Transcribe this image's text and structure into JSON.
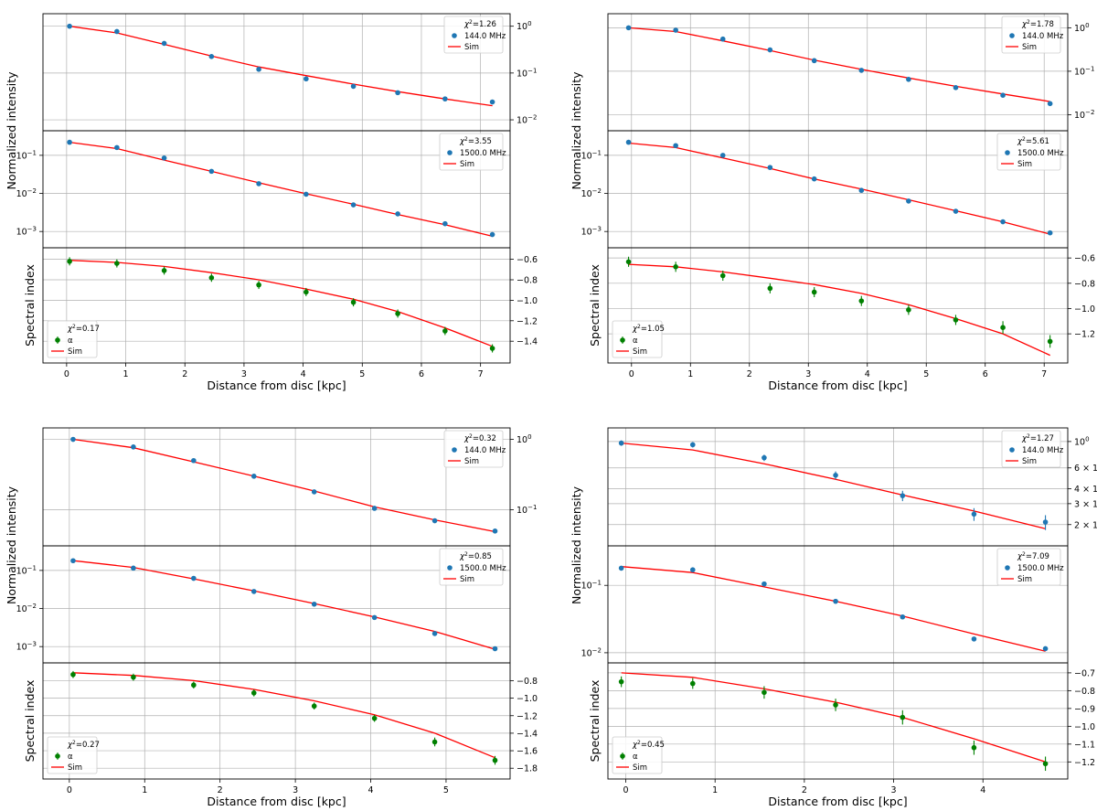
{
  "chart_data": [
    {
      "type": "scatter",
      "position": "top-left",
      "xlabel": "Distance from disc [kpc]",
      "xlim": [
        -0.4,
        7.5
      ],
      "xticks": [
        0,
        1,
        2,
        3,
        4,
        5,
        6,
        7
      ],
      "panels": [
        {
          "role": "intensity_low",
          "ylabel": "Normalized intensity",
          "yscale": "log",
          "ylim": [
            0.008,
            1.35
          ],
          "yaxis_side": "right",
          "yticks": [
            {
              "v": 1,
              "label": "10^0"
            },
            {
              "v": 0.1,
              "label": "10^-1"
            },
            {
              "v": 0.01,
              "label": "10^-2"
            }
          ],
          "legend": {
            "chi2": "1.26",
            "data_label": "144.0 MHz",
            "model_label": "Sim",
            "placement": "top-right"
          },
          "x": [
            0.05,
            0.85,
            1.65,
            2.45,
            3.25,
            4.05,
            4.85,
            5.6,
            6.4,
            7.2
          ],
          "y": [
            1.0,
            0.77,
            0.43,
            0.225,
            0.12,
            0.075,
            0.052,
            0.038,
            0.028,
            0.024
          ],
          "yerr": [
            0,
            0,
            0,
            0,
            0,
            0,
            0,
            0,
            0,
            0
          ],
          "model": [
            1.0,
            0.72,
            0.41,
            0.23,
            0.135,
            0.088,
            0.058,
            0.04,
            0.028,
            0.02
          ],
          "color": "#1f77b4"
        },
        {
          "role": "intensity_high",
          "ylabel": "",
          "yscale": "log",
          "ylim": [
            0.00055,
            0.3
          ],
          "yaxis_side": "left",
          "yticks": [
            {
              "v": 0.1,
              "label": "10^-1"
            },
            {
              "v": 0.01,
              "label": "10^-2"
            },
            {
              "v": 0.001,
              "label": "10^-3"
            }
          ],
          "legend": {
            "chi2": "3.55",
            "data_label": "1500.0 MHz",
            "model_label": "Sim",
            "placement": "top-right"
          },
          "x": [
            0.05,
            0.85,
            1.65,
            2.45,
            3.25,
            4.05,
            4.85,
            5.6,
            6.4,
            7.2
          ],
          "y": [
            0.22,
            0.16,
            0.085,
            0.038,
            0.018,
            0.0095,
            0.005,
            0.0029,
            0.0016,
            0.00083
          ],
          "yerr": [
            0,
            0,
            0,
            0,
            0,
            0,
            0,
            0,
            0,
            0
          ],
          "model": [
            0.22,
            0.15,
            0.075,
            0.038,
            0.019,
            0.0098,
            0.0052,
            0.0028,
            0.0015,
            0.00075
          ],
          "color": "#1f77b4"
        },
        {
          "role": "spectral_index",
          "ylabel": "Spectral index",
          "yscale": "linear",
          "ylim": [
            -1.55,
            -0.55
          ],
          "yaxis_side": "right",
          "yticks": [
            {
              "v": -0.6,
              "label": "−0.6"
            },
            {
              "v": -0.8,
              "label": "−0.8"
            },
            {
              "v": -1.0,
              "label": "−1.0"
            },
            {
              "v": -1.2,
              "label": "−1.2"
            },
            {
              "v": -1.4,
              "label": "−1.4"
            }
          ],
          "legend": {
            "chi2": "0.17",
            "data_label": "α",
            "model_label": "Sim",
            "placement": "lower-left"
          },
          "x": [
            0.05,
            0.85,
            1.65,
            2.45,
            3.25,
            4.05,
            4.85,
            5.6,
            6.4,
            7.2
          ],
          "y": [
            -0.62,
            -0.64,
            -0.71,
            -0.78,
            -0.85,
            -0.92,
            -1.02,
            -1.13,
            -1.3,
            -1.47
          ],
          "yerr": [
            0.04,
            0.04,
            0.04,
            0.04,
            0.04,
            0.04,
            0.04,
            0.04,
            0.04,
            0.04
          ],
          "model": [
            -0.61,
            -0.63,
            -0.67,
            -0.73,
            -0.8,
            -0.89,
            -0.99,
            -1.11,
            -1.27,
            -1.45
          ],
          "color": "#008000"
        }
      ]
    },
    {
      "type": "scatter",
      "position": "top-right",
      "xlabel": "Distance from disc [kpc]",
      "xlim": [
        -0.4,
        7.4
      ],
      "xticks": [
        0,
        1,
        2,
        3,
        4,
        5,
        6,
        7
      ],
      "panels": [
        {
          "role": "intensity_low",
          "ylabel": "Normalized intensity",
          "yscale": "log",
          "ylim": [
            0.006,
            1.5
          ],
          "yaxis_side": "right",
          "yticks": [
            {
              "v": 1,
              "label": "10^0"
            },
            {
              "v": 0.1,
              "label": "10^-1"
            },
            {
              "v": 0.01,
              "label": "10^-2"
            }
          ],
          "legend": {
            "chi2": "1.78",
            "data_label": "144.0 MHz",
            "model_label": "Sim",
            "placement": "top-right"
          },
          "x": [
            -0.05,
            0.75,
            1.55,
            2.35,
            3.1,
            3.9,
            4.7,
            5.5,
            6.3,
            7.1
          ],
          "y": [
            1.0,
            0.88,
            0.55,
            0.31,
            0.175,
            0.105,
            0.065,
            0.042,
            0.028,
            0.018
          ],
          "yerr": [
            0,
            0,
            0,
            0,
            0,
            0,
            0,
            0,
            0,
            0
          ],
          "model": [
            1.0,
            0.82,
            0.5,
            0.3,
            0.18,
            0.11,
            0.07,
            0.045,
            0.03,
            0.02
          ],
          "color": "#1f77b4"
        },
        {
          "role": "intensity_high",
          "ylabel": "",
          "yscale": "log",
          "ylim": [
            0.00055,
            0.3
          ],
          "yaxis_side": "left",
          "yticks": [
            {
              "v": 0.1,
              "label": "10^-1"
            },
            {
              "v": 0.01,
              "label": "10^-2"
            },
            {
              "v": 0.001,
              "label": "10^-3"
            }
          ],
          "legend": {
            "chi2": "5.61",
            "data_label": "1500.0 MHz",
            "model_label": "Sim",
            "placement": "top-right"
          },
          "x": [
            -0.05,
            0.75,
            1.55,
            2.35,
            3.1,
            3.9,
            4.7,
            5.5,
            6.3,
            7.1
          ],
          "y": [
            0.22,
            0.18,
            0.1,
            0.048,
            0.024,
            0.012,
            0.0063,
            0.0034,
            0.0018,
            0.00092
          ],
          "yerr": [
            0,
            0,
            0,
            0,
            0,
            0,
            0,
            0,
            0,
            0
          ],
          "model": [
            0.21,
            0.16,
            0.085,
            0.045,
            0.024,
            0.013,
            0.0068,
            0.0035,
            0.0018,
            0.00085
          ],
          "color": "#1f77b4"
        },
        {
          "role": "spectral_index",
          "ylabel": "Spectral index",
          "yscale": "linear",
          "ylim": [
            -1.38,
            -0.57
          ],
          "yaxis_side": "right",
          "yticks": [
            {
              "v": -0.6,
              "label": "−0.6"
            },
            {
              "v": -0.8,
              "label": "−0.8"
            },
            {
              "v": -1.0,
              "label": "−1.0"
            },
            {
              "v": -1.2,
              "label": "−1.2"
            }
          ],
          "legend": {
            "chi2": "1.05",
            "data_label": "α",
            "model_label": "Sim",
            "placement": "lower-left"
          },
          "x": [
            -0.05,
            0.75,
            1.55,
            2.35,
            3.1,
            3.9,
            4.7,
            5.5,
            6.3,
            7.1
          ],
          "y": [
            -0.63,
            -0.67,
            -0.74,
            -0.84,
            -0.87,
            -0.94,
            -1.01,
            -1.09,
            -1.15,
            -1.26
          ],
          "yerr": [
            0.04,
            0.04,
            0.04,
            0.04,
            0.04,
            0.04,
            0.04,
            0.04,
            0.05,
            0.05
          ],
          "model": [
            -0.65,
            -0.67,
            -0.71,
            -0.76,
            -0.81,
            -0.88,
            -0.97,
            -1.08,
            -1.2,
            -1.37
          ],
          "color": "#008000"
        }
      ]
    },
    {
      "type": "scatter",
      "position": "bottom-left",
      "xlabel": "Distance from disc [kpc]",
      "xlim": [
        -0.35,
        5.85
      ],
      "xticks": [
        0,
        1,
        2,
        3,
        4,
        5
      ],
      "panels": [
        {
          "role": "intensity_low",
          "ylabel": "Normalized intensity",
          "yscale": "log",
          "ylim": [
            0.038,
            1.18
          ],
          "yaxis_side": "right",
          "yticks": [
            {
              "v": 1,
              "label": "10^0"
            },
            {
              "v": 0.1,
              "label": "10^-1"
            }
          ],
          "legend": {
            "chi2": "0.32",
            "data_label": "144.0 MHz",
            "model_label": "Sim",
            "placement": "top-right"
          },
          "x": [
            0.05,
            0.85,
            1.65,
            2.45,
            3.25,
            4.05,
            4.85,
            5.65
          ],
          "y": [
            1.0,
            0.78,
            0.5,
            0.3,
            0.18,
            0.105,
            0.07,
            0.05
          ],
          "yerr": [
            0,
            0,
            0,
            0,
            0,
            0,
            0,
            0
          ],
          "model": [
            1.0,
            0.76,
            0.48,
            0.3,
            0.185,
            0.11,
            0.072,
            0.049
          ],
          "color": "#1f77b4"
        },
        {
          "role": "intensity_high",
          "ylabel": "",
          "yscale": "log",
          "ylim": [
            0.00055,
            0.3
          ],
          "yaxis_side": "left",
          "yticks": [
            {
              "v": 0.1,
              "label": "10^-1"
            },
            {
              "v": 0.01,
              "label": "10^-2"
            },
            {
              "v": 0.001,
              "label": "10^-3"
            }
          ],
          "legend": {
            "chi2": "0.85",
            "data_label": "1500.0 MHz",
            "model_label": "Sim",
            "placement": "top-right"
          },
          "x": [
            0.05,
            0.85,
            1.65,
            2.45,
            3.25,
            4.05,
            4.85,
            5.65
          ],
          "y": [
            0.18,
            0.115,
            0.062,
            0.028,
            0.013,
            0.0058,
            0.0022,
            0.00088
          ],
          "yerr": [
            0,
            0,
            0,
            0,
            0,
            0,
            0,
            0
          ],
          "model": [
            0.18,
            0.12,
            0.06,
            0.029,
            0.0135,
            0.006,
            0.0025,
            0.00085
          ],
          "color": "#1f77b4"
        },
        {
          "role": "spectral_index",
          "ylabel": "Spectral index",
          "yscale": "linear",
          "ylim": [
            -1.85,
            -0.67
          ],
          "yaxis_side": "right",
          "yticks": [
            {
              "v": -0.8,
              "label": "−0.8"
            },
            {
              "v": -1.0,
              "label": "−1.0"
            },
            {
              "v": -1.2,
              "label": "−1.2"
            },
            {
              "v": -1.4,
              "label": "−1.4"
            },
            {
              "v": -1.6,
              "label": "−1.6"
            },
            {
              "v": -1.8,
              "label": "−1.8"
            }
          ],
          "legend": {
            "chi2": "0.27",
            "data_label": "α",
            "model_label": "Sim",
            "placement": "lower-left"
          },
          "x": [
            0.05,
            0.85,
            1.65,
            2.45,
            3.25,
            4.05,
            4.85,
            5.65
          ],
          "y": [
            -0.73,
            -0.76,
            -0.85,
            -0.94,
            -1.09,
            -1.23,
            -1.5,
            -1.71
          ],
          "yerr": [
            0.04,
            0.04,
            0.04,
            0.04,
            0.04,
            0.04,
            0.05,
            0.05
          ],
          "model": [
            -0.71,
            -0.74,
            -0.8,
            -0.9,
            -1.03,
            -1.19,
            -1.4,
            -1.68
          ],
          "color": "#008000"
        }
      ]
    },
    {
      "type": "scatter",
      "position": "bottom-right",
      "xlabel": "Distance from disc [kpc]",
      "xlim": [
        -0.2,
        4.95
      ],
      "xticks": [
        0,
        1,
        2,
        3,
        4
      ],
      "panels": [
        {
          "role": "intensity_low",
          "ylabel": "Normalized intensity",
          "yscale": "log",
          "ylim": [
            0.15,
            1.15
          ],
          "yaxis_side": "right",
          "yticks": [
            {
              "v": 1,
              "label": "10^0"
            },
            {
              "v": 0.6,
              "label": "6 × 10^-1"
            },
            {
              "v": 0.4,
              "label": "4 × 10^-1"
            },
            {
              "v": 0.3,
              "label": "3 × 10^-1"
            },
            {
              "v": 0.2,
              "label": "2 × 10^-1"
            }
          ],
          "legend": {
            "chi2": "1.27",
            "data_label": "144.0 MHz",
            "model_label": "Sim",
            "placement": "top-right"
          },
          "x": [
            -0.05,
            0.75,
            1.55,
            2.35,
            3.1,
            3.9,
            4.7
          ],
          "y": [
            0.97,
            0.94,
            0.73,
            0.52,
            0.35,
            0.245,
            0.21
          ],
          "yerr": [
            0.05,
            0.05,
            0.045,
            0.04,
            0.035,
            0.03,
            0.03
          ],
          "model": [
            0.97,
            0.85,
            0.65,
            0.48,
            0.355,
            0.26,
            0.185
          ],
          "color": "#1f77b4"
        },
        {
          "role": "intensity_high",
          "ylabel": "",
          "yscale": "log",
          "ylim": [
            0.0088,
            0.31
          ],
          "yaxis_side": "left",
          "yticks": [
            {
              "v": 0.1,
              "label": "10^-1"
            },
            {
              "v": 0.01,
              "label": "10^-2"
            }
          ],
          "legend": {
            "chi2": "7.09",
            "data_label": "1500.0 MHz",
            "model_label": "Sim",
            "placement": "top-right"
          },
          "x": [
            -0.05,
            0.75,
            1.55,
            2.35,
            3.1,
            3.9,
            4.7
          ],
          "y": [
            0.18,
            0.17,
            0.105,
            0.058,
            0.034,
            0.016,
            0.0115
          ],
          "yerr": [
            0,
            0,
            0,
            0,
            0,
            0,
            0
          ],
          "model": [
            0.19,
            0.155,
            0.095,
            0.058,
            0.035,
            0.019,
            0.0105
          ],
          "color": "#1f77b4"
        },
        {
          "role": "spectral_index",
          "ylabel": "Spectral index",
          "yscale": "linear",
          "ylim": [
            -1.26,
            -0.68
          ],
          "yaxis_side": "right",
          "yticks": [
            {
              "v": -0.7,
              "label": "−0.7"
            },
            {
              "v": -0.8,
              "label": "−0.8"
            },
            {
              "v": -0.9,
              "label": "−0.9"
            },
            {
              "v": -1.0,
              "label": "−1.0"
            },
            {
              "v": -1.1,
              "label": "−1.1"
            },
            {
              "v": -1.2,
              "label": "−1.2"
            }
          ],
          "legend": {
            "chi2": "0.45",
            "data_label": "α",
            "model_label": "Sim",
            "placement": "lower-left"
          },
          "x": [
            -0.05,
            0.75,
            1.55,
            2.35,
            3.1,
            3.9,
            4.7
          ],
          "y": [
            -0.75,
            -0.76,
            -0.81,
            -0.88,
            -0.95,
            -1.12,
            -1.21
          ],
          "yerr": [
            0.03,
            0.03,
            0.035,
            0.035,
            0.04,
            0.04,
            0.04
          ],
          "model": [
            -0.7,
            -0.725,
            -0.79,
            -0.865,
            -0.95,
            -1.07,
            -1.2
          ],
          "color": "#008000"
        }
      ]
    }
  ]
}
